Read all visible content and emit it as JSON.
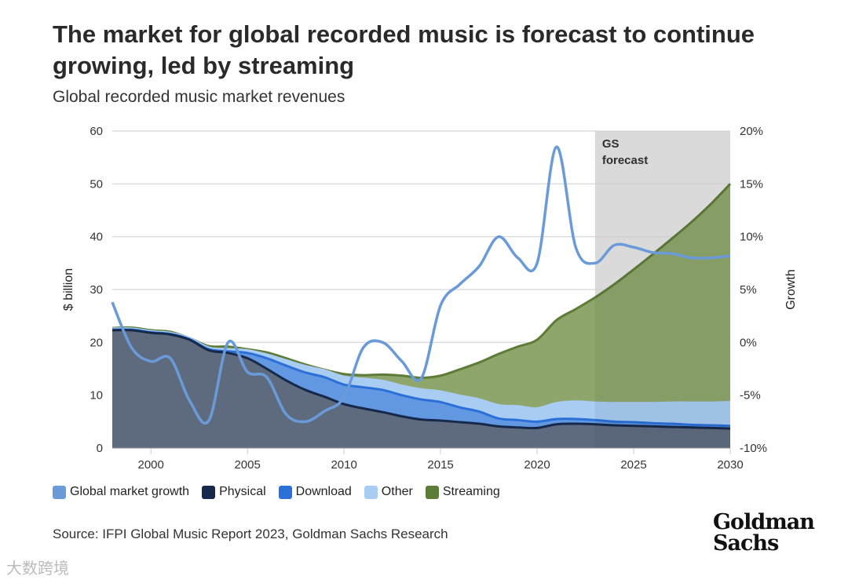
{
  "title": "The market for global recorded music is forecast to continue growing, led by streaming",
  "subtitle": "Global recorded music market revenues",
  "source": "Source: IFPI Global Music Report 2023, Goldman Sachs Research",
  "logo": "Goldman Sachs",
  "watermark": "大数跨境",
  "colors": {
    "physical": "#5e6a7c",
    "physical_line": "#17294a",
    "download": "#6298e2",
    "download_line": "#2b6fd8",
    "other": "#a9ccf3",
    "streaming": "#8ea66c",
    "streaming_line": "#5d7c38",
    "growth": "#6a9ad8",
    "forecast": "#e6e6e6"
  },
  "chart_data": {
    "type": "area",
    "title": "The market for global recorded music is forecast to continue growing, led by streaming",
    "ylabel": "$ billion",
    "y2label": "Growth",
    "ylim": [
      0,
      60
    ],
    "y2lim": [
      -10,
      20
    ],
    "xlim": [
      1998,
      2030
    ],
    "yticks": [
      "0",
      "10",
      "20",
      "30",
      "40",
      "50",
      "60"
    ],
    "y2ticks": [
      "-10%",
      "-5%",
      "0%",
      "5%",
      "10%",
      "15%",
      "20%"
    ],
    "xticks": [
      "2000",
      "2005",
      "2010",
      "2015",
      "2020",
      "2025",
      "2030"
    ],
    "forecast_label": [
      "GS",
      "forecast"
    ],
    "forecast_start": 2023,
    "legend": [
      "Global market growth",
      "Physical",
      "Download",
      "Other",
      "Streaming"
    ],
    "x": [
      1998,
      1999,
      2000,
      2001,
      2002,
      2003,
      2004,
      2005,
      2006,
      2007,
      2008,
      2009,
      2010,
      2011,
      2012,
      2013,
      2014,
      2015,
      2016,
      2017,
      2018,
      2019,
      2020,
      2021,
      2022,
      2023,
      2024,
      2025,
      2026,
      2027,
      2028,
      2029,
      2030
    ],
    "series": [
      {
        "name": "Physical",
        "values": [
          22.3,
          22.3,
          21.8,
          21.5,
          20.5,
          18.5,
          18.0,
          17.0,
          15.0,
          12.8,
          11.0,
          9.7,
          8.3,
          7.5,
          6.8,
          6.0,
          5.4,
          5.2,
          4.9,
          4.6,
          4.1,
          3.9,
          3.8,
          4.5,
          4.6,
          4.5,
          4.3,
          4.2,
          4.1,
          4.0,
          3.9,
          3.8,
          3.7
        ]
      },
      {
        "name": "Download",
        "values": [
          0.1,
          0.1,
          0.1,
          0.1,
          0.1,
          0.2,
          0.3,
          1.0,
          2.0,
          2.8,
          3.3,
          3.7,
          3.7,
          4.0,
          4.2,
          4.0,
          3.8,
          3.5,
          2.8,
          2.3,
          1.5,
          1.4,
          1.2,
          1.0,
          0.9,
          0.8,
          0.7,
          0.7,
          0.6,
          0.6,
          0.5,
          0.5,
          0.5
        ]
      },
      {
        "name": "Other",
        "values": [
          0.2,
          0.2,
          0.2,
          0.2,
          0.2,
          0.3,
          0.4,
          0.5,
          0.7,
          1.0,
          1.2,
          1.3,
          1.5,
          1.6,
          1.7,
          1.8,
          1.9,
          2.0,
          2.2,
          2.3,
          2.5,
          2.6,
          2.5,
          3.0,
          3.3,
          3.3,
          3.5,
          3.6,
          3.8,
          4.0,
          4.2,
          4.3,
          4.5
        ]
      },
      {
        "name": "Streaming",
        "values": [
          0.1,
          0.2,
          0.2,
          0.2,
          0.0,
          0.3,
          0.5,
          0.2,
          0.4,
          0.4,
          0.3,
          0.1,
          0.5,
          0.7,
          1.2,
          1.9,
          2.2,
          3.0,
          5.0,
          7.0,
          9.7,
          11.3,
          13.0,
          15.7,
          17.5,
          19.9,
          22.5,
          25.3,
          28.2,
          31.1,
          34.2,
          37.6,
          41.3
        ]
      },
      {
        "name": "Global market growth",
        "axis": "right",
        "values": [
          3.8,
          -0.5,
          -1.8,
          -1.5,
          -5.5,
          -7.4,
          0,
          -2.8,
          -3.3,
          -6.8,
          -7.5,
          -6.5,
          -5.2,
          -0.5,
          0,
          -1.8,
          -3.4,
          3.5,
          5.5,
          7.2,
          10,
          8,
          7.5,
          18.5,
          9,
          7.5,
          9.2,
          9,
          8.5,
          8.4,
          8,
          8,
          8.2
        ]
      }
    ]
  }
}
